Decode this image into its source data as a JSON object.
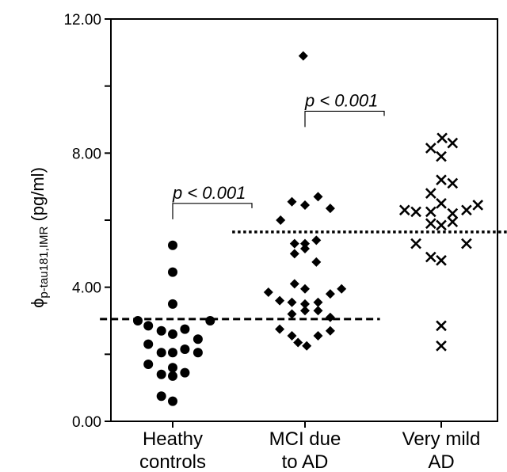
{
  "chart_data": {
    "type": "scatter",
    "title": "",
    "ylabel": {
      "symbol": "ϕ",
      "subscript": "p-tau181,IMR",
      "unit": " (pg/ml)"
    },
    "ylim": [
      0,
      12
    ],
    "yticks": [
      {
        "value": 0,
        "label": "0.00"
      },
      {
        "value": 4,
        "label": "4.00"
      },
      {
        "value": 8,
        "label": "8.00"
      },
      {
        "value": 12,
        "label": "12.00"
      }
    ],
    "categories": [
      {
        "lines": [
          "Heathy",
          "controls"
        ]
      },
      {
        "lines": [
          "MCI due",
          "to AD"
        ]
      },
      {
        "lines": [
          "Very mild",
          "AD"
        ]
      }
    ],
    "series": [
      {
        "category": 0,
        "marker": "circle",
        "points": [
          [
            -0.4,
            3.0
          ],
          [
            -0.28,
            2.85
          ],
          [
            -0.13,
            2.7
          ],
          [
            0.0,
            2.6
          ],
          [
            0.14,
            2.75
          ],
          [
            0.29,
            2.45
          ],
          [
            0.43,
            3.0
          ],
          [
            -0.28,
            2.3
          ],
          [
            -0.13,
            2.05
          ],
          [
            0.0,
            2.05
          ],
          [
            0.14,
            2.15
          ],
          [
            0.29,
            2.05
          ],
          [
            -0.28,
            1.7
          ],
          [
            -0.13,
            1.4
          ],
          [
            0.0,
            1.35
          ],
          [
            0.14,
            1.45
          ],
          [
            0.0,
            1.6
          ],
          [
            -0.13,
            0.75
          ],
          [
            0.0,
            0.6
          ],
          [
            0.0,
            3.5
          ],
          [
            0.0,
            4.45
          ],
          [
            0.0,
            5.25
          ]
        ]
      },
      {
        "category": 1,
        "marker": "diamond",
        "points": [
          [
            -0.02,
            10.9
          ],
          [
            -0.28,
            6.0
          ],
          [
            -0.15,
            6.55
          ],
          [
            0.0,
            6.45
          ],
          [
            0.15,
            6.7
          ],
          [
            0.29,
            6.35
          ],
          [
            -0.12,
            5.3
          ],
          [
            0.0,
            5.3
          ],
          [
            0.13,
            5.4
          ],
          [
            -0.12,
            5.0
          ],
          [
            0.0,
            5.15
          ],
          [
            0.13,
            4.75
          ],
          [
            -0.12,
            4.1
          ],
          [
            0.0,
            3.95
          ],
          [
            -0.42,
            3.85
          ],
          [
            -0.29,
            3.6
          ],
          [
            -0.15,
            3.55
          ],
          [
            0.0,
            3.5
          ],
          [
            0.15,
            3.55
          ],
          [
            0.29,
            3.8
          ],
          [
            0.42,
            3.95
          ],
          [
            -0.15,
            3.2
          ],
          [
            0.0,
            3.3
          ],
          [
            0.15,
            3.3
          ],
          [
            0.29,
            3.1
          ],
          [
            -0.29,
            2.75
          ],
          [
            -0.15,
            2.55
          ],
          [
            0.15,
            2.55
          ],
          [
            0.29,
            2.7
          ],
          [
            -0.08,
            2.35
          ],
          [
            0.02,
            2.25
          ]
        ]
      },
      {
        "category": 2,
        "marker": "x",
        "points": [
          [
            0.01,
            8.45
          ],
          [
            0.13,
            8.3
          ],
          [
            -0.12,
            8.15
          ],
          [
            0.0,
            7.9
          ],
          [
            0.0,
            7.2
          ],
          [
            0.13,
            7.1
          ],
          [
            -0.12,
            6.8
          ],
          [
            0.0,
            6.5
          ],
          [
            -0.42,
            6.3
          ],
          [
            -0.29,
            6.25
          ],
          [
            -0.12,
            6.25
          ],
          [
            0.13,
            6.2
          ],
          [
            0.29,
            6.3
          ],
          [
            0.42,
            6.45
          ],
          [
            -0.12,
            5.9
          ],
          [
            0.0,
            5.85
          ],
          [
            0.13,
            5.95
          ],
          [
            -0.29,
            5.3
          ],
          [
            0.29,
            5.3
          ],
          [
            -0.12,
            4.9
          ],
          [
            0.0,
            4.8
          ],
          [
            0.0,
            2.85
          ],
          [
            0.0,
            2.25
          ]
        ]
      }
    ],
    "reference_lines": [
      {
        "style": "dashed",
        "value": 3.05,
        "from": -0.55,
        "to": 1.55
      },
      {
        "style": "dotted",
        "value": 5.65,
        "from": 0.45,
        "to": 2.55
      }
    ],
    "annotations": [
      {
        "text": "p < 0.001",
        "between": [
          0,
          1
        ],
        "value": 6.5
      },
      {
        "text": "p < 0.001",
        "between": [
          1,
          2
        ],
        "value": 9.25
      }
    ]
  }
}
